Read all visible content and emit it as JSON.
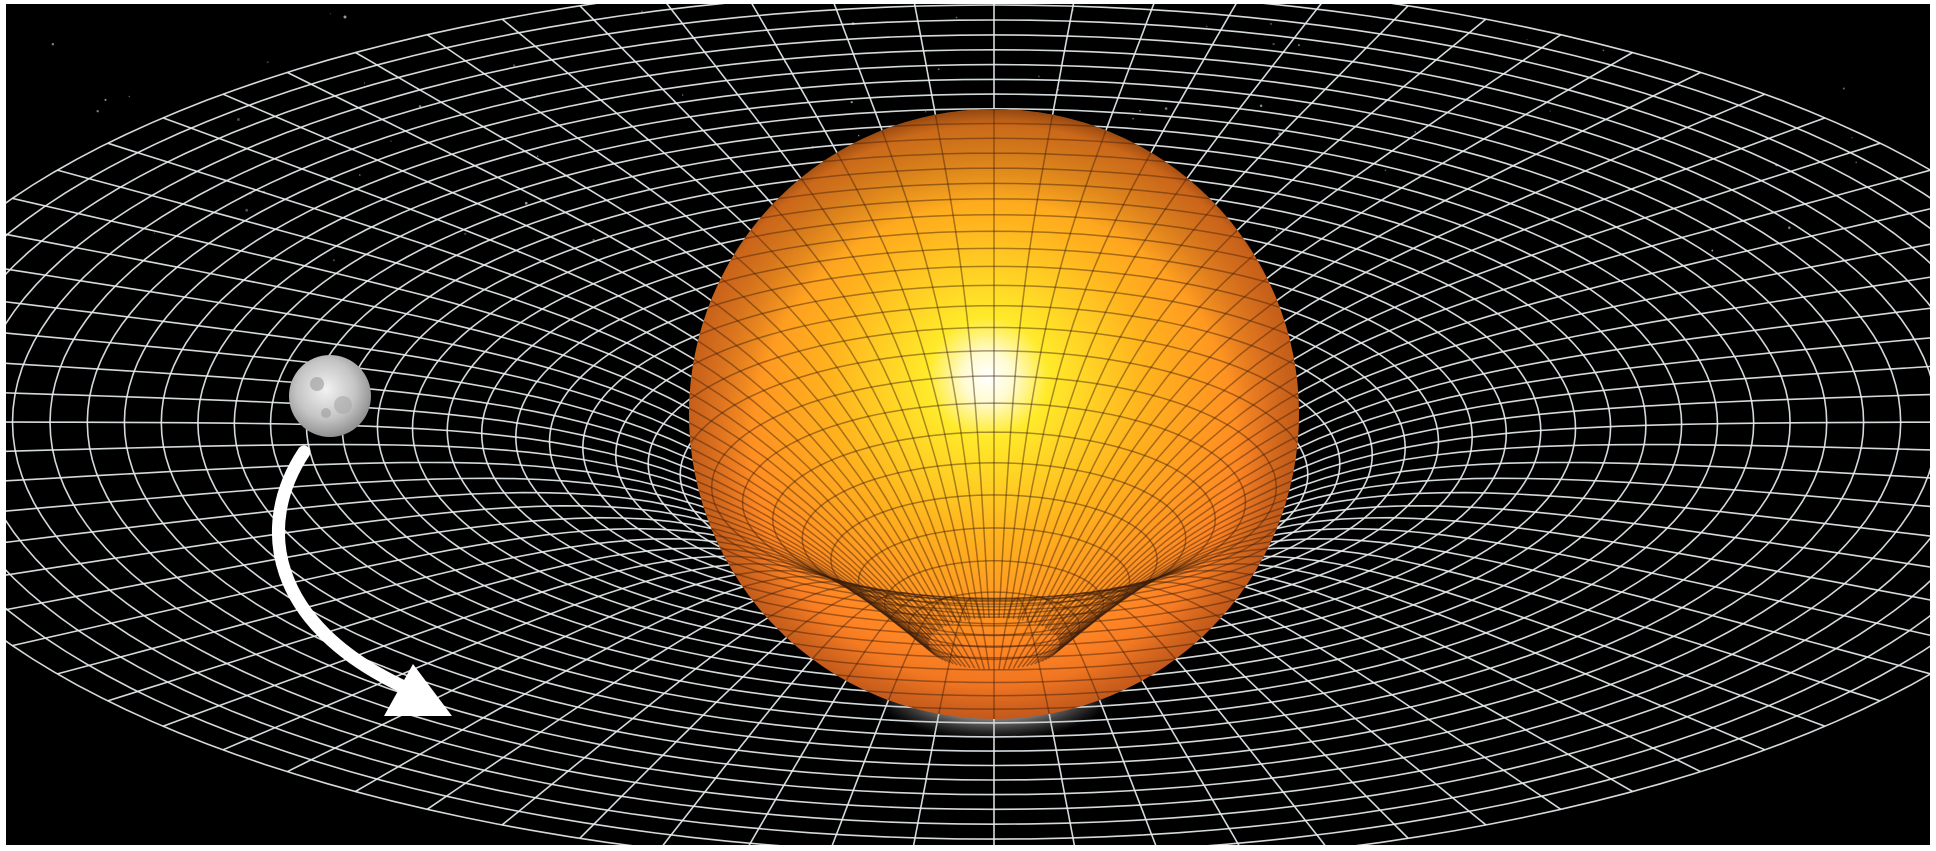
{
  "illustration": {
    "subject": "spacetime-curvature",
    "colors": {
      "space": "#000000",
      "grid": "#e6ebee",
      "grid_shadow": "#3a1c0a",
      "star_core": "#ffffff",
      "star_mid": "#ffe11a",
      "star_outer": "#ff8a22",
      "star_edge": "#c2521a",
      "moon": "#c9c9c9",
      "arrow": "#ffffff"
    },
    "icons": {
      "star": "sun-icon",
      "moon": "moon-icon",
      "arrow": "curved-arrow-icon"
    }
  }
}
